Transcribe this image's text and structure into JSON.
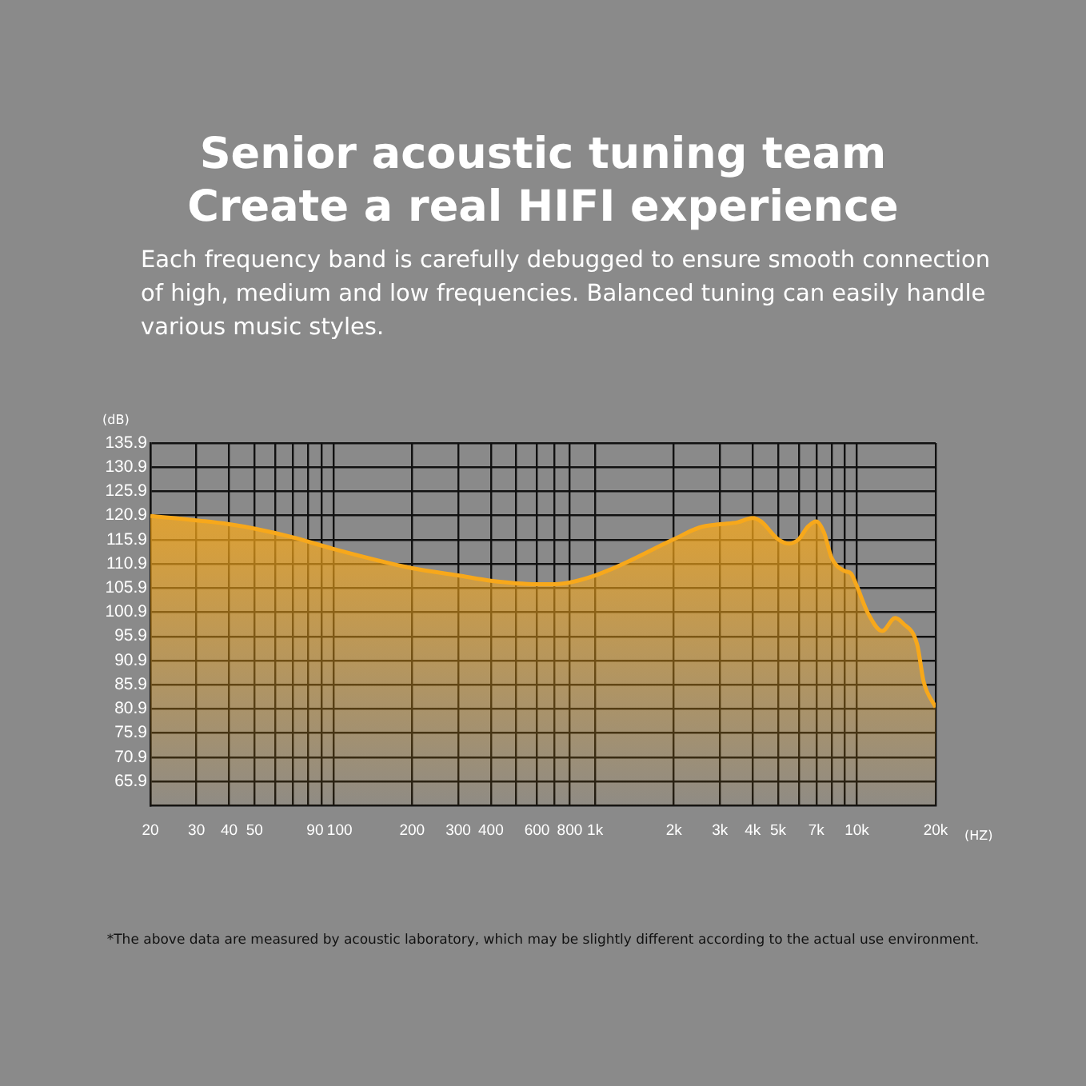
{
  "chart_data": {
    "type": "area",
    "title": "Senior acoustic tuning team\nCreate a real HIFI experience",
    "subtitle": "Each frequency band is carefully debugged to ensure smooth connection of high, medium and low frequencies. Balanced tuning can easily handle various music styles.",
    "xlabel": "(HZ)",
    "ylabel": "(dB)",
    "annotations": [
      "*The above data are measured by acoustic laboratory, which may be slightly different according to the actual use environment."
    ],
    "log": "x",
    "grid": true,
    "legend": false,
    "xlim": [
      20,
      20000
    ],
    "ylim": [
      60.9,
      135.9
    ],
    "xticks": [
      20,
      30,
      40,
      50,
      {
        "value": 60,
        "label": null
      },
      {
        "value": 70,
        "label": null
      },
      {
        "value": 80,
        "label": null
      },
      90,
      100,
      200,
      300,
      400,
      {
        "value": 500,
        "label": null
      },
      600,
      {
        "value": 700,
        "label": null
      },
      800,
      {
        "value": 1000,
        "label": "1k"
      },
      {
        "value": 2000,
        "label": "2k"
      },
      {
        "value": 3000,
        "label": "3k"
      },
      {
        "value": 4000,
        "label": "4k"
      },
      {
        "value": 5000,
        "label": "5k"
      },
      {
        "value": 6000,
        "label": null
      },
      {
        "value": 7000,
        "label": "7k"
      },
      {
        "value": 8000,
        "label": null
      },
      {
        "value": 9000,
        "label": null
      },
      {
        "value": 10000,
        "label": "10k"
      },
      {
        "value": 20000,
        "label": "20k"
      }
    ],
    "yticks": [
      65.9,
      70.9,
      75.9,
      80.9,
      85.9,
      90.9,
      95.9,
      100.9,
      105.9,
      110.9,
      115.9,
      120.9,
      125.9,
      130.9,
      135.9
    ],
    "x": [
      20,
      30,
      40,
      50,
      70,
      100,
      200,
      300,
      400,
      600,
      700,
      1000,
      2000,
      2500,
      3000,
      3500,
      4000,
      4300,
      5000,
      5500,
      6000,
      6500,
      7000,
      7500,
      8000,
      9000,
      9500,
      10000,
      11000,
      12500,
      14000,
      15000,
      17000,
      18000,
      20000
    ],
    "series": [
      {
        "color": "#f7a81b",
        "values": [
          120.8,
          119.9,
          119.1,
          118.2,
          116.4,
          114.0,
          110.0,
          108.5,
          107.4,
          106.7,
          106.7,
          108.5,
          116.0,
          118.4,
          119.1,
          119.5,
          120.4,
          119.7,
          116.0,
          115.1,
          116.0,
          118.6,
          119.7,
          117.3,
          112.2,
          109.4,
          108.9,
          106.3,
          100.8,
          97.0,
          99.7,
          98.6,
          94.2,
          86.5,
          81.2
        ]
      }
    ]
  }
}
